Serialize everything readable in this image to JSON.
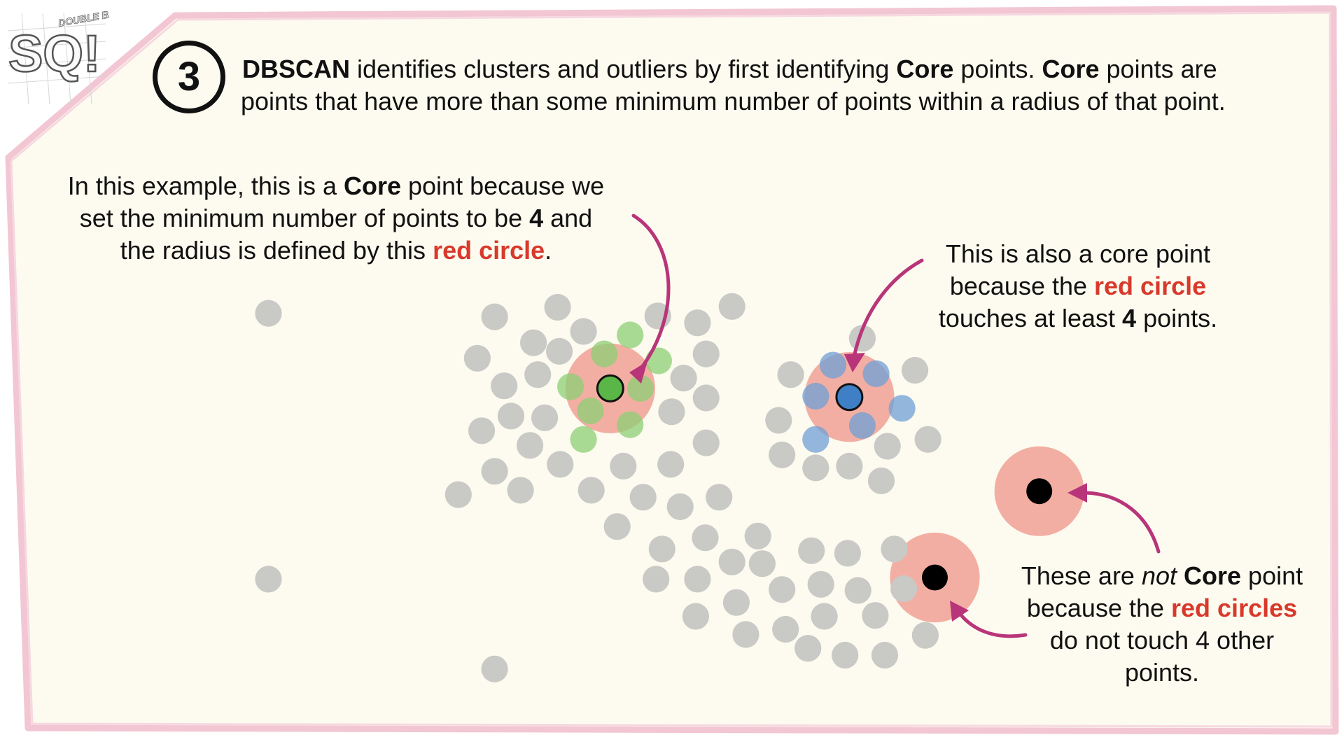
{
  "step_number": "3",
  "logo": {
    "letters": "SQ!",
    "badge_text": "DOUBLE BAM!!!"
  },
  "header": {
    "term": "DBSCAN",
    "part1": " identifies clusters and outliers by first identifying ",
    "core1": "Core",
    "part2": " points. ",
    "core2": "Core",
    "part3": " points are",
    "line2": "points that have more than some minimum number of points within a radius of that point."
  },
  "callout_core": {
    "l1_a": "In this example, this is a ",
    "l1_core": "Core",
    "l1_b": " point because we",
    "l2_a": "set the minimum number of points to be ",
    "l2_num": "4",
    "l2_b": " and",
    "l3_a": "the radius is defined by this ",
    "l3_red": "red circle",
    "l3_b": "."
  },
  "callout_also": {
    "l1": "This is also a core point",
    "l2_a": "because the ",
    "l2_red": "red circle",
    "l3_a": "touches at least ",
    "l3_num": "4",
    "l3_b": " points."
  },
  "callout_not": {
    "l1_a": "These are ",
    "l1_not": "not",
    "l1_space": " ",
    "l1_core": "Core",
    "l1_b": " point",
    "l2_a": "because the ",
    "l2_red": "red circles",
    "l3": "do not touch 4 other",
    "l4": "points."
  },
  "colors": {
    "background": "#fdfbef",
    "border": "#f2c6d3",
    "gray_point": "#c9c9c6",
    "radius_circle": "#f2a59a",
    "green_point": "#5ab646",
    "light_green": "#8ccf74",
    "blue_point": "#3f7fc6",
    "light_blue": "#6f9fd6",
    "black_point": "#000000",
    "arrow": "#b8357a",
    "red_text": "#d8392b"
  }
}
